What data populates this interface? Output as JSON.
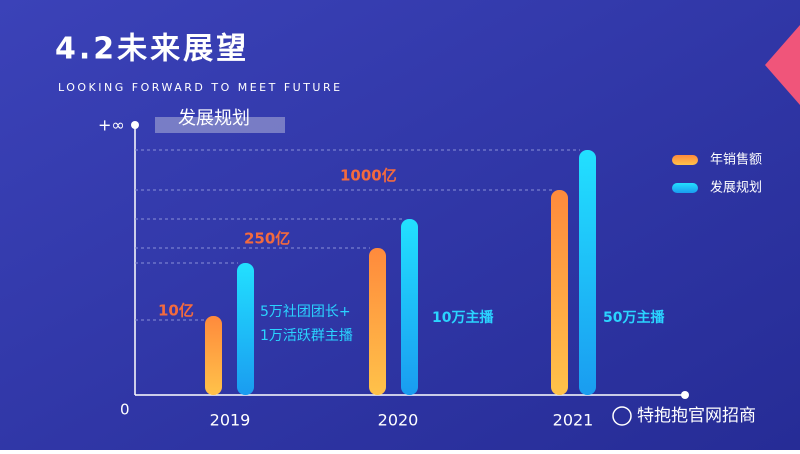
{
  "header": {
    "title": "4.2未来展望",
    "subtitle": "LOOKING FORWARD TO MEET FUTURE"
  },
  "axis": {
    "top_label": "+∞",
    "origin_label": "0",
    "y_title": "发展规划"
  },
  "categories": [
    "2019",
    "2020",
    "2021"
  ],
  "legend": [
    "年销售额",
    "发展规划"
  ],
  "sales_labels": [
    "10亿",
    "250亿",
    "1000亿"
  ],
  "plan_labels": [
    [
      "5万社团团长+",
      "1万活跃群主播"
    ],
    [
      "10万主播"
    ],
    [
      "50万主播"
    ]
  ],
  "watermark": "特抱抱官网招商"
}
